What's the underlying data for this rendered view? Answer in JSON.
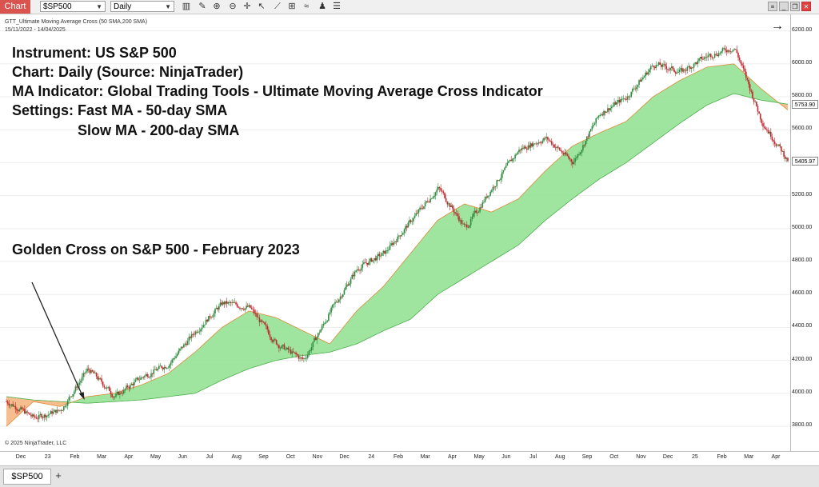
{
  "toolbar": {
    "chart_tab": "Chart",
    "instrument": "$SP500",
    "interval": "Daily"
  },
  "chart_header": {
    "indicator": "GTT_Ultimate Moving Average Cross (50 SMA,200 SMA)",
    "date_range": "15/11/2022 - 14/04/2025"
  },
  "annotations": {
    "line1": "Instrument: US S&P 500",
    "line2": "Chart: Daily (Source: NinjaTrader)",
    "line3": "MA Indicator: Global Trading Tools - Ultimate Moving Average Cross Indicator",
    "line4": "Settings: Fast MA - 50-day SMA",
    "line5": "Slow MA - 200-day SMA",
    "golden_cross": "Golden Cross on S&P 500 - February 2023"
  },
  "copyright": "© 2025 NinjaTrader, LLC",
  "bottom": {
    "tab": "$SP500",
    "add": "+"
  },
  "colors": {
    "bull_fill": "#8ee08e",
    "bear_fill": "#f5b27a",
    "up_candle": "#2e8b3e",
    "down_candle": "#c0262c"
  },
  "chart_data": {
    "type": "line",
    "instrument": "US S&P 500",
    "ylim": [
      3650,
      6300
    ],
    "yticks": [
      3800,
      4000,
      4200,
      4400,
      4600,
      4800,
      5000,
      5200,
      5400,
      5600,
      5800,
      6000,
      6200
    ],
    "ytick_labels": [
      "3800.00",
      "4000.00",
      "4200.00",
      "4400.00",
      "4600.00",
      "4800.00",
      "5000.00",
      "5200.00",
      "5400.00",
      "5600.00",
      "5800.00",
      "6000.00",
      "6200.00"
    ],
    "price_markers": [
      "5753.90",
      "5405.97"
    ],
    "xtick_labels": [
      "Dec",
      "23",
      "Feb",
      "Mar",
      "Apr",
      "May",
      "Jun",
      "Jul",
      "Aug",
      "Sep",
      "Oct",
      "Nov",
      "Dec",
      "24",
      "Feb",
      "Mar",
      "Apr",
      "May",
      "Jun",
      "Jul",
      "Aug",
      "Sep",
      "Oct",
      "Nov",
      "Dec",
      "25",
      "Feb",
      "Mar",
      "Apr"
    ],
    "x": [
      "Nov 22",
      "Dec 22",
      "Jan 23",
      "Feb 23",
      "Mar 23",
      "Apr 23",
      "May 23",
      "Jun 23",
      "Jul 23",
      "Aug 23",
      "Sep 23",
      "Oct 23",
      "Nov 23",
      "Dec 23",
      "Jan 24",
      "Feb 24",
      "Mar 24",
      "Apr 24",
      "May 24",
      "Jun 24",
      "Jul 24",
      "Aug 24",
      "Sep 24",
      "Oct 24",
      "Nov 24",
      "Dec 24",
      "Jan 25",
      "Feb 25",
      "Mar 25",
      "Apr 25"
    ],
    "series": [
      {
        "name": "50 SMA",
        "values": [
          3800,
          3950,
          3920,
          3980,
          4000,
          4050,
          4120,
          4250,
          4400,
          4500,
          4460,
          4380,
          4300,
          4500,
          4650,
          4850,
          5050,
          5150,
          5100,
          5180,
          5350,
          5500,
          5580,
          5650,
          5800,
          5900,
          5980,
          6000,
          5850,
          5720
        ]
      },
      {
        "name": "200 SMA",
        "values": [
          3980,
          3960,
          3950,
          3940,
          3950,
          3960,
          3980,
          4000,
          4080,
          4150,
          4200,
          4230,
          4250,
          4300,
          4380,
          4450,
          4600,
          4700,
          4800,
          4900,
          5050,
          5180,
          5300,
          5400,
          5520,
          5640,
          5750,
          5820,
          5780,
          5755
        ]
      },
      {
        "name": "Price",
        "values": [
          3950,
          3850,
          3900,
          4150,
          3980,
          4100,
          4180,
          4380,
          4550,
          4520,
          4300,
          4200,
          4500,
          4760,
          4850,
          5050,
          5250,
          5000,
          5250,
          5480,
          5550,
          5400,
          5700,
          5800,
          6000,
          5950,
          6050,
          6100,
          5650,
          5405
        ]
      }
    ]
  }
}
